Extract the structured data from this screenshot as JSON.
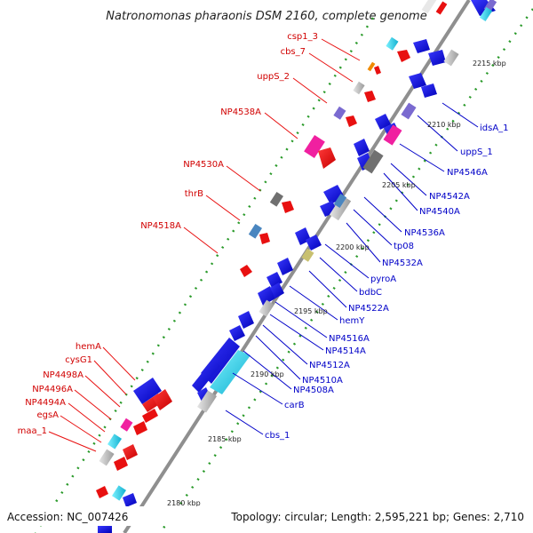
{
  "title": "Natronomonas pharaonis DSM 2160, complete genome",
  "footer": {
    "accession": "Accession: NC_007426",
    "topology": "Topology: circular; Length: 2,595,221 bp; Genes: 2,710"
  },
  "ticks": [
    "2215 kbp",
    "2210 kbp",
    "2205 kbp",
    "2200 kbp",
    "2195 kbp",
    "2190 kbp",
    "2185 kbp",
    "2180 kbp"
  ],
  "labels_left": [
    "csp1_3",
    "cbs_7",
    "uppS_2",
    "NP4538A",
    "NP4530A",
    "thrB",
    "NP4518A",
    "hemA",
    "cysG1",
    "NP4498A",
    "NP4496A",
    "NP4494A",
    "egsA",
    "maa_1"
  ],
  "labels_right": [
    "idsA_1",
    "uppS_1",
    "NP4546A",
    "NP4542A",
    "NP4540A",
    "NP4536A",
    "tp08",
    "NP4532A",
    "pyroA",
    "bdbC",
    "NP4522A",
    "hemY",
    "NP4516A",
    "NP4514A",
    "NP4512A",
    "NP4510A",
    "NP4508A",
    "carB",
    "cbs_1"
  ],
  "colors": {
    "cds": "#1010e0",
    "rna": "#e81010",
    "highlight_magenta": "#f020a0",
    "highlight_cyan": "#20d8e8",
    "grey": "#b8b8b8",
    "dark_grey": "#707070",
    "purple": "#7a6ad0",
    "steel": "#4a86c0",
    "olive": "#c8c070",
    "orange": "#f08a00",
    "backbone": "#909090"
  }
}
